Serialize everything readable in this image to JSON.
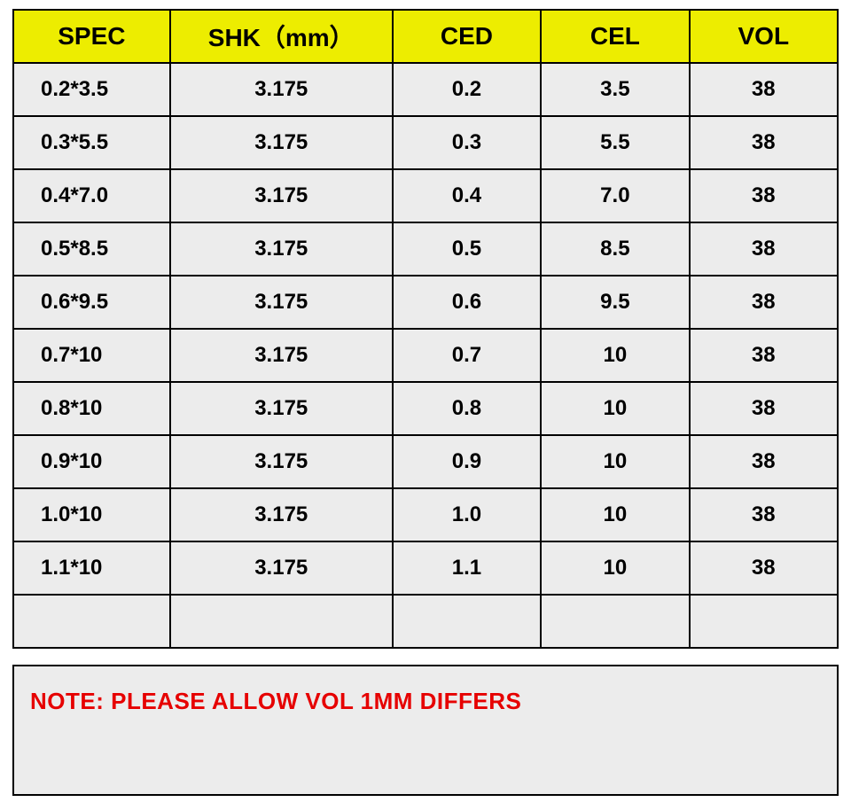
{
  "table": {
    "columns": [
      "SPEC",
      "SHK（mm）",
      "CED",
      "CEL",
      "VOL"
    ],
    "rows": [
      [
        "0.2*3.5",
        "3.175",
        "0.2",
        "3.5",
        "38"
      ],
      [
        "0.3*5.5",
        "3.175",
        "0.3",
        "5.5",
        "38"
      ],
      [
        "0.4*7.0",
        "3.175",
        "0.4",
        "7.0",
        "38"
      ],
      [
        "0.5*8.5",
        "3.175",
        "0.5",
        "8.5",
        "38"
      ],
      [
        "0.6*9.5",
        "3.175",
        "0.6",
        "9.5",
        "38"
      ],
      [
        "0.7*10",
        "3.175",
        "0.7",
        "10",
        "38"
      ],
      [
        "0.8*10",
        "3.175",
        "0.8",
        "10",
        "38"
      ],
      [
        "0.9*10",
        "3.175",
        "0.9",
        "10",
        "38"
      ],
      [
        "1.0*10",
        "3.175",
        "1.0",
        "10",
        "38"
      ],
      [
        "1.1*10",
        "3.175",
        "1.1",
        "10",
        "38"
      ],
      [
        "",
        "",
        "",
        "",
        ""
      ]
    ],
    "header_bg": "#eded00",
    "body_bg": "#ececec",
    "border_color": "#000000",
    "header_fontsize": 28,
    "body_fontsize": 24,
    "font_weight": 700,
    "column_widths_pct": [
      19,
      27,
      18,
      18,
      18
    ]
  },
  "note": {
    "text": "NOTE:  PLEASE ALLOW VOL 1MM DIFFERS",
    "color": "#e60000",
    "bg": "#ececec",
    "fontsize": 26,
    "font_weight": 700
  }
}
